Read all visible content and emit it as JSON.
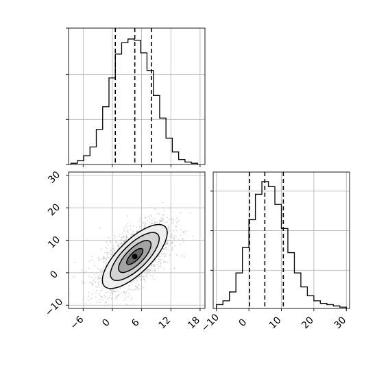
{
  "chart_data": [
    {
      "panel": "top-left",
      "type": "histogram",
      "variable": "x",
      "xlim": [
        -9,
        19
      ],
      "ylim": [
        0,
        1
      ],
      "xticks": [
        -6,
        0,
        6,
        12,
        18
      ],
      "grid": true,
      "bins": [
        {
          "x0": -8.5,
          "x1": -7.2,
          "h": 0.01
        },
        {
          "x0": -7.2,
          "x1": -5.9,
          "h": 0.03
        },
        {
          "x0": -5.9,
          "x1": -4.6,
          "h": 0.07
        },
        {
          "x0": -4.6,
          "x1": -3.3,
          "h": 0.14
        },
        {
          "x0": -3.3,
          "x1": -2.0,
          "h": 0.28
        },
        {
          "x0": -2.0,
          "x1": -0.7,
          "h": 0.46
        },
        {
          "x0": -0.7,
          "x1": 0.6,
          "h": 0.69
        },
        {
          "x0": 0.6,
          "x1": 1.9,
          "h": 0.88
        },
        {
          "x0": 1.9,
          "x1": 3.2,
          "h": 0.97
        },
        {
          "x0": 3.2,
          "x1": 4.5,
          "h": 1.0
        },
        {
          "x0": 4.5,
          "x1": 5.8,
          "h": 0.99
        },
        {
          "x0": 5.8,
          "x1": 7.1,
          "h": 0.89
        },
        {
          "x0": 7.1,
          "x1": 8.4,
          "h": 0.75
        },
        {
          "x0": 8.4,
          "x1": 9.7,
          "h": 0.55
        },
        {
          "x0": 9.7,
          "x1": 11.0,
          "h": 0.37
        },
        {
          "x0": 11.0,
          "x1": 12.3,
          "h": 0.21
        },
        {
          "x0": 12.3,
          "x1": 13.6,
          "h": 0.1
        },
        {
          "x0": 13.6,
          "x1": 14.9,
          "h": 0.04
        },
        {
          "x0": 14.9,
          "x1": 16.2,
          "h": 0.02
        },
        {
          "x0": 16.2,
          "x1": 17.5,
          "h": 0.01
        }
      ],
      "quantiles": [
        0.6,
        4.6,
        8.0
      ]
    },
    {
      "panel": "bottom-right",
      "type": "histogram",
      "variable": "y",
      "xlim": [
        -11,
        31
      ],
      "ylim": [
        0,
        1
      ],
      "xticks": [
        -10,
        0,
        10,
        20,
        30
      ],
      "grid": true,
      "bins": [
        {
          "x0": -10.0,
          "x1": -8.0,
          "h": 0.03
        },
        {
          "x0": -8.0,
          "x1": -6.0,
          "h": 0.06
        },
        {
          "x0": -6.0,
          "x1": -4.0,
          "h": 0.13
        },
        {
          "x0": -4.0,
          "x1": -2.0,
          "h": 0.28
        },
        {
          "x0": -2.0,
          "x1": 0.0,
          "h": 0.48
        },
        {
          "x0": 0.0,
          "x1": 2.0,
          "h": 0.7
        },
        {
          "x0": 2.0,
          "x1": 4.0,
          "h": 0.9
        },
        {
          "x0": 4.0,
          "x1": 6.0,
          "h": 1.0
        },
        {
          "x0": 6.0,
          "x1": 8.0,
          "h": 0.96
        },
        {
          "x0": 8.0,
          "x1": 10.0,
          "h": 0.82
        },
        {
          "x0": 10.0,
          "x1": 12.0,
          "h": 0.63
        },
        {
          "x0": 12.0,
          "x1": 14.0,
          "h": 0.44
        },
        {
          "x0": 14.0,
          "x1": 16.0,
          "h": 0.28
        },
        {
          "x0": 16.0,
          "x1": 18.0,
          "h": 0.17
        },
        {
          "x0": 18.0,
          "x1": 20.0,
          "h": 0.1
        },
        {
          "x0": 20.0,
          "x1": 22.0,
          "h": 0.06
        },
        {
          "x0": 22.0,
          "x1": 24.0,
          "h": 0.04
        },
        {
          "x0": 24.0,
          "x1": 26.0,
          "h": 0.03
        },
        {
          "x0": 26.0,
          "x1": 28.0,
          "h": 0.02
        },
        {
          "x0": 28.0,
          "x1": 30.0,
          "h": 0.01
        }
      ],
      "quantiles": [
        0.2,
        4.9,
        10.6
      ]
    },
    {
      "panel": "bottom-left",
      "type": "scatter",
      "xvar": "x",
      "yvar": "y",
      "xlim": [
        -9,
        19
      ],
      "ylim": [
        -11,
        31
      ],
      "xticks": [
        -6,
        0,
        6,
        12,
        18
      ],
      "yticks": [
        -10,
        0,
        10,
        20,
        30
      ],
      "grid": true,
      "point_color": "#b0b0b0",
      "contour_color": "#000000",
      "center": [
        4.6,
        5.0
      ],
      "std": [
        3.6,
        5.3
      ],
      "correlation": 0.6
    }
  ]
}
